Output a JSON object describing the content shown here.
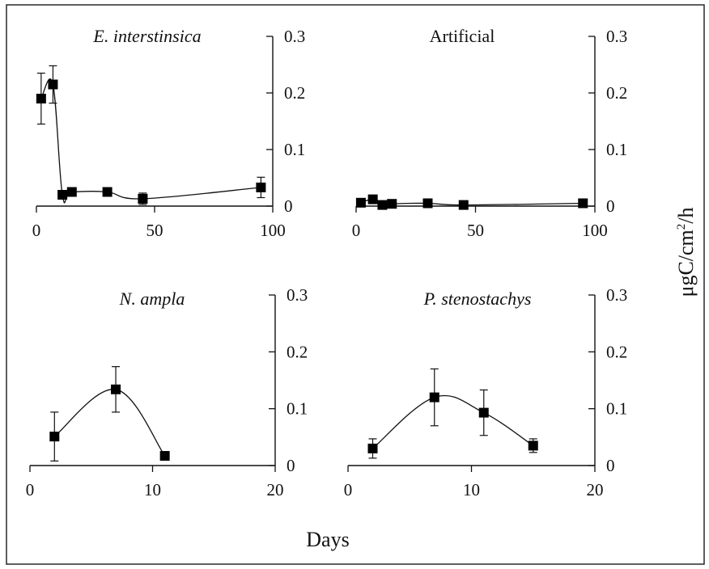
{
  "figure": {
    "xlabel": "Days",
    "ylabel": "μgC/cm",
    "ylabel_sup": "2",
    "ylabel_tail": "/h"
  },
  "chart_data": [
    {
      "type": "line",
      "title": "E. interstinsica",
      "title_italic": true,
      "xlim": [
        0,
        100
      ],
      "ylim": [
        0,
        0.3
      ],
      "xticks": [
        0,
        50,
        100
      ],
      "yticks": [
        0,
        0.1,
        0.2,
        0.3
      ],
      "xticklabels": [
        "0",
        "50",
        "100"
      ],
      "yticklabels": [
        "0",
        "0.1",
        "0.2",
        "0.3"
      ],
      "y_axis_side": "right",
      "series": [
        {
          "marker": "square",
          "x": [
            2,
            7,
            11,
            15,
            30,
            45,
            95
          ],
          "y": [
            0.19,
            0.215,
            0.02,
            0.025,
            0.025,
            0.013,
            0.033
          ],
          "err": [
            0.045,
            0.033,
            0.004,
            0.005,
            0.005,
            0.01,
            0.018
          ]
        }
      ]
    },
    {
      "type": "line",
      "title": "Artificial",
      "title_italic": false,
      "xlim": [
        0,
        100
      ],
      "ylim": [
        0,
        0.3
      ],
      "xticks": [
        0,
        50,
        100
      ],
      "yticks": [
        0,
        0.1,
        0.2,
        0.3
      ],
      "xticklabels": [
        "0",
        "50",
        "100"
      ],
      "yticklabels": [
        "0",
        "0.1",
        "0.2",
        "0.3"
      ],
      "y_axis_side": "right",
      "series": [
        {
          "marker": "square",
          "x": [
            2,
            7,
            11,
            15,
            30,
            45,
            95
          ],
          "y": [
            0.006,
            0.012,
            0.002,
            0.004,
            0.005,
            0.002,
            0.005
          ],
          "err": [
            0.002,
            0.003,
            0.001,
            0.002,
            0.002,
            0.001,
            0.002
          ]
        }
      ]
    },
    {
      "type": "line",
      "title": "N. ampla",
      "title_italic": true,
      "xlim": [
        0,
        20
      ],
      "ylim": [
        0,
        0.3
      ],
      "xticks": [
        0,
        10,
        20
      ],
      "yticks": [
        0,
        0.1,
        0.2,
        0.3
      ],
      "xticklabels": [
        "0",
        "10",
        "20"
      ],
      "yticklabels": [
        "0",
        "0.1",
        "0.2",
        "0.3"
      ],
      "y_axis_side": "right",
      "series": [
        {
          "marker": "square",
          "x": [
            2,
            7,
            11
          ],
          "y": [
            0.051,
            0.134,
            0.017
          ],
          "err": [
            0.043,
            0.04,
            0.003
          ]
        }
      ]
    },
    {
      "type": "line",
      "title": "P. stenostachys",
      "title_italic": true,
      "xlim": [
        0,
        20
      ],
      "ylim": [
        0,
        0.3
      ],
      "xticks": [
        0,
        10,
        20
      ],
      "yticks": [
        0,
        0.1,
        0.2,
        0.3
      ],
      "xticklabels": [
        "0",
        "10",
        "20"
      ],
      "yticklabels": [
        "0",
        "0.1",
        "0.2",
        "0.3"
      ],
      "y_axis_side": "right",
      "series": [
        {
          "marker": "square",
          "x": [
            2,
            7,
            11,
            15
          ],
          "y": [
            0.03,
            0.12,
            0.093,
            0.035
          ],
          "err": [
            0.017,
            0.05,
            0.04,
            0.012
          ]
        }
      ]
    }
  ]
}
